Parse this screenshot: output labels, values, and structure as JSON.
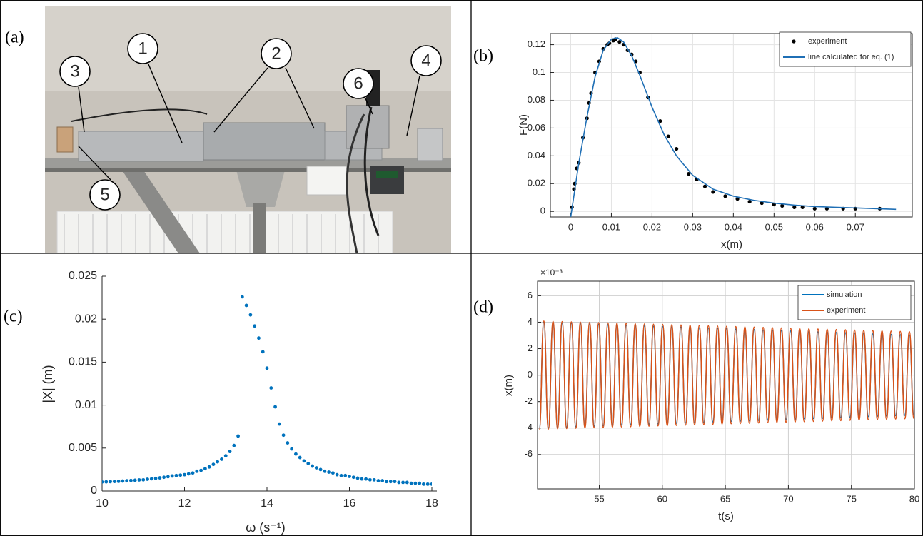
{
  "photo": {
    "label": "(a)",
    "callouts": [
      "1",
      "2",
      "3",
      "4",
      "5",
      "6"
    ]
  },
  "chart_data": [
    {
      "type": "scatter",
      "panel_label": "(b)",
      "x_label": "x(m)",
      "y_label": "F(N)",
      "xlim": [
        -0.005,
        0.084
      ],
      "ylim": [
        -0.004,
        0.128
      ],
      "xticks": [
        0,
        0.01,
        0.02,
        0.03,
        0.04,
        0.05,
        0.06,
        0.07
      ],
      "yticks": [
        0,
        0.02,
        0.04,
        0.06,
        0.08,
        0.1,
        0.12
      ],
      "grid": true,
      "legend": "upper right",
      "series": [
        {
          "name": "experiment",
          "style": "markers",
          "color": "#000000",
          "x": [
            0.0003,
            0.0008,
            0.001,
            0.0015,
            0.002,
            0.003,
            0.004,
            0.0045,
            0.005,
            0.006,
            0.007,
            0.008,
            0.009,
            0.0095,
            0.0105,
            0.011,
            0.012,
            0.013,
            0.014,
            0.015,
            0.016,
            0.017,
            0.019,
            0.022,
            0.024,
            0.026,
            0.029,
            0.031,
            0.033,
            0.035,
            0.038,
            0.041,
            0.044,
            0.047,
            0.05,
            0.052,
            0.055,
            0.057,
            0.06,
            0.063,
            0.067,
            0.07,
            0.076
          ],
          "values": [
            0.003,
            0.016,
            0.02,
            0.031,
            0.035,
            0.053,
            0.067,
            0.078,
            0.085,
            0.1,
            0.108,
            0.117,
            0.12,
            0.121,
            0.123,
            0.124,
            0.122,
            0.12,
            0.116,
            0.113,
            0.108,
            0.1,
            0.082,
            0.065,
            0.054,
            0.045,
            0.027,
            0.023,
            0.018,
            0.014,
            0.011,
            0.009,
            0.007,
            0.006,
            0.005,
            0.004,
            0.003,
            0.003,
            0.002,
            0.002,
            0.002,
            0.002,
            0.002
          ]
        },
        {
          "name": "line calculated for eq. (1)",
          "style": "line",
          "color": "#1f6fb5",
          "x": [
            0,
            0.002,
            0.004,
            0.006,
            0.008,
            0.01,
            0.0115,
            0.013,
            0.015,
            0.017,
            0.02,
            0.023,
            0.026,
            0.03,
            0.035,
            0.04,
            0.045,
            0.05,
            0.055,
            0.06,
            0.065,
            0.07,
            0.075,
            0.08
          ],
          "values": [
            -0.004,
            0.035,
            0.068,
            0.097,
            0.116,
            0.124,
            0.125,
            0.122,
            0.112,
            0.098,
            0.075,
            0.055,
            0.04,
            0.026,
            0.016,
            0.011,
            0.008,
            0.006,
            0.0045,
            0.0035,
            0.003,
            0.0025,
            0.002,
            0.0015
          ]
        }
      ]
    },
    {
      "type": "scatter",
      "panel_label": "(c)",
      "x_label": "ω (s⁻¹)",
      "y_label": "|X| (m)",
      "xlim": [
        10,
        18
      ],
      "ylim": [
        0,
        0.025
      ],
      "xticks": [
        10,
        12,
        14,
        16,
        18
      ],
      "yticks": [
        0,
        0.005,
        0.01,
        0.015,
        0.02,
        0.025
      ],
      "grid": false,
      "color": "#0072bd",
      "x": [
        10.0,
        10.1,
        10.2,
        10.3,
        10.4,
        10.5,
        10.6,
        10.7,
        10.8,
        10.9,
        11.0,
        11.1,
        11.2,
        11.3,
        11.4,
        11.5,
        11.6,
        11.7,
        11.8,
        11.9,
        12.0,
        12.1,
        12.2,
        12.3,
        12.4,
        12.5,
        12.6,
        12.7,
        12.8,
        12.9,
        13.0,
        13.1,
        13.2,
        13.3,
        13.4,
        13.5,
        13.6,
        13.7,
        13.8,
        13.9,
        14.0,
        14.1,
        14.2,
        14.3,
        14.4,
        14.5,
        14.6,
        14.7,
        14.8,
        14.9,
        15.0,
        15.1,
        15.2,
        15.3,
        15.4,
        15.5,
        15.6,
        15.7,
        15.8,
        15.9,
        16.0,
        16.1,
        16.2,
        16.3,
        16.4,
        16.5,
        16.6,
        16.7,
        16.8,
        16.9,
        17.0,
        17.1,
        17.2,
        17.3,
        17.4,
        17.5,
        17.6,
        17.7,
        17.8,
        17.9,
        18.0
      ],
      "values": [
        0.00105,
        0.00107,
        0.00109,
        0.00111,
        0.00113,
        0.00116,
        0.00119,
        0.00122,
        0.00125,
        0.00129,
        0.0013,
        0.00137,
        0.00142,
        0.00147,
        0.00153,
        0.0016,
        0.00167,
        0.00175,
        0.0018,
        0.00185,
        0.0019,
        0.002,
        0.0021,
        0.0023,
        0.0024,
        0.0026,
        0.0028,
        0.0031,
        0.0034,
        0.0037,
        0.0041,
        0.0046,
        0.0053,
        0.0064,
        0.0226,
        0.0216,
        0.0205,
        0.0192,
        0.0178,
        0.0162,
        0.0143,
        0.012,
        0.0098,
        0.0078,
        0.0065,
        0.0056,
        0.0049,
        0.0043,
        0.0039,
        0.0035,
        0.0032,
        0.0029,
        0.0027,
        0.0025,
        0.0023,
        0.0022,
        0.0021,
        0.0019,
        0.0018,
        0.0018,
        0.0017,
        0.0016,
        0.0015,
        0.0014,
        0.0014,
        0.0013,
        0.0013,
        0.0012,
        0.0012,
        0.0011,
        0.0011,
        0.0011,
        0.001,
        0.001,
        0.001,
        0.0009,
        0.0009,
        0.0009,
        0.0008,
        0.0008,
        0.0008
      ]
    },
    {
      "type": "line",
      "panel_label": "(d)",
      "x_label": "t(s)",
      "y_label": "x(m)",
      "y_multiplier": "×10⁻³",
      "xlim": [
        50.1,
        80
      ],
      "ylim": [
        -8.6,
        7.1
      ],
      "xticks": [
        55,
        60,
        65,
        70,
        75,
        80
      ],
      "yticks": [
        -6,
        -4,
        -2,
        0,
        2,
        4,
        6
      ],
      "grid": true,
      "legend": "upper right",
      "x": [
        50.24,
        50.6,
        50.96,
        51.33,
        51.69,
        52.05,
        52.41,
        52.78,
        53.14,
        53.5,
        53.86,
        54.23,
        54.59,
        54.95,
        55.31,
        55.68,
        56.04,
        56.4,
        56.76,
        57.13,
        57.49,
        57.85,
        58.21,
        58.58,
        58.94,
        59.3,
        59.66,
        60.03,
        60.39,
        60.75,
        61.11,
        61.48,
        61.84,
        62.2,
        62.56,
        62.93,
        63.29,
        63.65,
        64.01,
        64.38,
        64.74,
        65.1,
        65.46,
        65.83,
        66.19,
        66.55,
        66.91,
        67.28,
        67.64,
        68.0,
        68.36,
        68.73,
        69.09,
        69.45,
        69.81,
        70.18,
        70.54,
        70.9,
        71.26,
        71.63,
        71.99,
        72.35,
        72.71,
        73.08,
        73.44,
        73.8,
        74.16,
        74.53,
        74.89,
        75.25,
        75.61,
        75.98,
        76.34,
        76.7,
        77.06,
        77.43,
        77.79,
        78.15,
        78.51,
        78.88,
        79.24,
        79.6,
        79.96
      ],
      "series": [
        {
          "name": "simulation",
          "color": "#0072bd",
          "values": [
            -4.0,
            3.99,
            -3.98,
            3.96,
            -3.95,
            3.94,
            -3.93,
            3.92,
            -3.9,
            3.89,
            -3.88,
            3.87,
            -3.86,
            3.84,
            -3.83,
            3.82,
            -3.81,
            3.8,
            -3.78,
            3.77,
            -3.76,
            3.75,
            -3.74,
            3.72,
            -3.71,
            3.7,
            -3.69,
            3.68,
            -3.66,
            3.65,
            -3.64,
            3.63,
            -3.62,
            3.6,
            -3.59,
            3.58,
            -3.57,
            3.56,
            -3.54,
            3.53,
            -3.52,
            3.51,
            -3.5,
            3.48,
            -3.47,
            3.46,
            -3.45,
            3.44,
            -3.42,
            3.41,
            -3.4,
            3.39,
            -3.38,
            3.36,
            -3.35,
            3.34,
            -3.33,
            3.32,
            -3.3,
            3.29,
            -3.28,
            3.27,
            -3.26,
            3.24,
            -3.23,
            3.22,
            -3.21,
            3.2,
            -3.18,
            3.17,
            -3.16,
            3.15,
            -3.14,
            3.12,
            -3.11,
            3.1,
            -3.09,
            3.08,
            -3.06,
            3.05,
            -3.04,
            3.03,
            -3.02
          ]
        },
        {
          "name": "experiment",
          "color": "#d95319",
          "values": [
            -4.1,
            4.09,
            -4.08,
            4.07,
            -4.06,
            4.05,
            -4.04,
            4.03,
            -4.02,
            4.01,
            -4.0,
            3.99,
            -3.98,
            3.97,
            -3.96,
            3.95,
            -3.94,
            3.93,
            -3.92,
            3.91,
            -3.9,
            3.89,
            -3.88,
            3.87,
            -3.86,
            3.85,
            -3.84,
            3.83,
            -3.82,
            3.81,
            -3.8,
            3.79,
            -3.78,
            3.77,
            -3.76,
            3.75,
            -3.74,
            3.73,
            -3.72,
            3.71,
            -3.7,
            3.69,
            -3.68,
            3.67,
            -3.66,
            3.65,
            -3.64,
            3.63,
            -3.62,
            3.61,
            -3.6,
            3.59,
            -3.58,
            3.57,
            -3.56,
            3.55,
            -3.54,
            3.53,
            -3.52,
            3.51,
            -3.5,
            3.49,
            -3.48,
            3.47,
            -3.46,
            3.45,
            -3.44,
            3.43,
            -3.42,
            3.41,
            -3.4,
            3.39,
            -3.38,
            3.37,
            -3.36,
            3.35,
            -3.34,
            3.33,
            -3.32,
            3.31,
            -3.3,
            3.29,
            -3.28
          ]
        }
      ]
    }
  ]
}
